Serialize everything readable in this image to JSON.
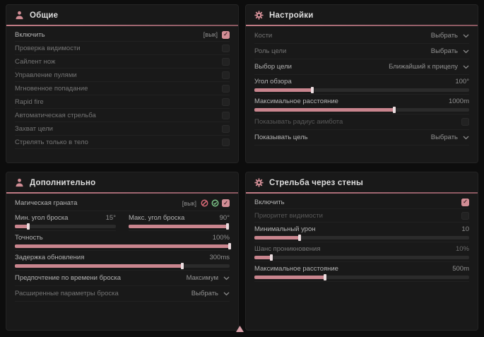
{
  "colors": {
    "accent": "#d18d95",
    "green": "#7fc98b",
    "red": "#d86a77"
  },
  "panels": {
    "general": {
      "title": "Общие",
      "rows": {
        "enable": {
          "label": "Включить",
          "tag": "[вык]",
          "checked": true
        },
        "visibility_check": {
          "label": "Проверка видимости",
          "checked": false
        },
        "silent_knife": {
          "label": "Сайлент нож",
          "checked": false
        },
        "bullet_control": {
          "label": "Управление пулями",
          "checked": false
        },
        "instant_hit": {
          "label": "Мгновенное попадание",
          "checked": false
        },
        "rapid_fire": {
          "label": "Rapid fire",
          "checked": false
        },
        "auto_fire": {
          "label": "Автоматическая стрельба",
          "checked": false
        },
        "target_lock": {
          "label": "Захват цели",
          "checked": false
        },
        "body_only": {
          "label": "Стрелять только в тело",
          "checked": false
        }
      }
    },
    "settings": {
      "title": "Настройки",
      "rows": {
        "bones": {
          "label": "Кости",
          "value": "Выбрать"
        },
        "target_role": {
          "label": "Роль цели",
          "value": "Выбрать"
        },
        "target_select": {
          "label": "Выбор цели",
          "value": "Ближайший к прицелу"
        },
        "fov": {
          "label": "Угол обзора",
          "value": "100°",
          "percent": 27
        },
        "max_distance": {
          "label": "Максимальное расстояние",
          "value": "1000m",
          "percent": 65
        },
        "show_radius": {
          "label": "Показывать радиус аимбота",
          "checked": false
        },
        "show_target": {
          "label": "Показывать цель",
          "value": "Выбрать"
        }
      }
    },
    "additional": {
      "title": "Дополнительно",
      "rows": {
        "magic_grenade": {
          "label": "Магическая граната",
          "tag": "[вык]",
          "checked": true
        },
        "min_throw_angle": {
          "label": "Мин. угол броска",
          "value": "15°",
          "percent": 13
        },
        "max_throw_angle": {
          "label": "Макс. угол броска",
          "value": "90°",
          "percent": 98
        },
        "accuracy": {
          "label": "Точность",
          "value": "100%",
          "percent": 100
        },
        "update_delay": {
          "label": "Задержка обновления",
          "value": "300ms",
          "percent": 78
        },
        "throw_time_pref": {
          "label": "Предпочтение по времени броска",
          "value": "Максимум"
        },
        "advanced_throw": {
          "label": "Расширенные параметры броска",
          "value": "Выбрать"
        }
      }
    },
    "wallbang": {
      "title": "Стрельба через стены",
      "rows": {
        "enable": {
          "label": "Включить",
          "checked": true
        },
        "visibility_priority": {
          "label": "Приоритет видимости",
          "checked": false
        },
        "min_damage": {
          "label": "Минимальный урон",
          "value": "10",
          "percent": 21
        },
        "penetration_chance": {
          "label": "Шанс проникновения",
          "value": "10%",
          "percent": 8
        },
        "max_distance": {
          "label": "Максимальное расстояние",
          "value": "500m",
          "percent": 33
        }
      }
    }
  }
}
